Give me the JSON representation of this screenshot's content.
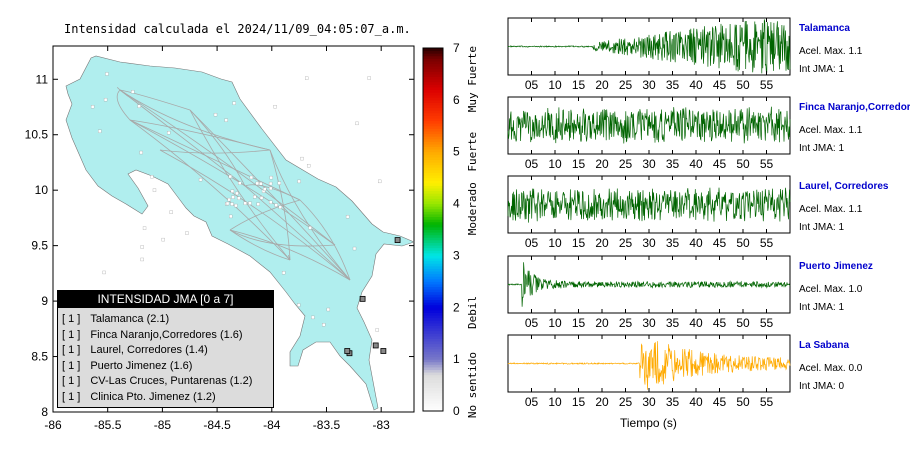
{
  "title": "Intensidad calculada el 2024/11/09_04:05:07_a.m.",
  "colorbar": {
    "ticks": [
      "0",
      "1",
      "2",
      "3",
      "4",
      "5",
      "6",
      "7"
    ],
    "words": [
      "No sentido",
      "Debil",
      "Moderado",
      "Fuerte",
      "Muy Fuerte"
    ]
  },
  "map": {
    "x_ticks": [
      "-86",
      "-85.5",
      "-85",
      "-84.5",
      "-84",
      "-83.5",
      "-83"
    ],
    "y_ticks": [
      "8",
      "8.5",
      "9",
      "9.5",
      "10",
      "10.5",
      "11"
    ],
    "land_color": "#b0eeee"
  },
  "legend": {
    "title": "INTENSIDAD JMA [0 a 7]",
    "rows": [
      {
        "bracket": "[ 1 ]",
        "label": "Talamanca (2.1)"
      },
      {
        "bracket": "[ 1 ]",
        "label": "Finca Naranjo,Corredores (1.6)"
      },
      {
        "bracket": "[ 1 ]",
        "label": "Laurel, Corredores (1.4)"
      },
      {
        "bracket": "[ 1 ]",
        "label": "Puerto Jimenez (1.6)"
      },
      {
        "bracket": "[ 1 ]",
        "label": "CV-Las Cruces, Puntarenas (1.2)"
      },
      {
        "bracket": "[ 1 ]",
        "label": "Clinica Pto. Jimenez (1.2)"
      }
    ]
  },
  "chart_data": [
    {
      "type": "heatmap",
      "x_range": [
        -86,
        -82.7
      ],
      "y_range": [
        8,
        11.3
      ],
      "colorbar_range": [
        0,
        7
      ],
      "stations": [
        {
          "name": "Talamanca",
          "lon": -82.85,
          "lat": 9.55
        },
        {
          "name": "Finca Naranjo,Corredores",
          "lon": -82.98,
          "lat": 8.55
        },
        {
          "name": "Laurel, Corredores",
          "lon": -83.05,
          "lat": 8.6
        },
        {
          "name": "Puerto Jimenez",
          "lon": -83.29,
          "lat": 8.53
        },
        {
          "name": "CV-Las Cruces, Puntarenas",
          "lon": -83.17,
          "lat": 9.02
        },
        {
          "name": "Clinica Pto. Jimenez",
          "lon": -83.31,
          "lat": 8.55
        }
      ]
    },
    {
      "type": "line",
      "xlabel": "Tiempo (s)",
      "x_ticks": [
        "05",
        "10",
        "15",
        "20",
        "25",
        "30",
        "35",
        "40",
        "45",
        "50",
        "55"
      ],
      "x_range": [
        0,
        60
      ],
      "panels": [
        {
          "name": "Talamanca",
          "accel": "Acel. Max. 1.1",
          "jma": "Int JMA: 1",
          "color": "#006400",
          "onset": 18
        },
        {
          "name": "Finca Naranjo,Corredores",
          "accel": "Acel. Max. 1.1",
          "jma": "Int JMA: 1",
          "color": "#006400",
          "onset": 0
        },
        {
          "name": "Laurel, Corredores",
          "accel": "Acel. Max. 1.1",
          "jma": "Int JMA: 1",
          "color": "#006400",
          "onset": 0
        },
        {
          "name": "Puerto Jimenez",
          "accel": "Acel. Max. 1.0",
          "jma": "Int JMA: 1",
          "color": "#006400",
          "onset": 3
        },
        {
          "name": "La Sabana",
          "accel": "Acel. Max. 0.0",
          "jma": "Int JMA: 0",
          "color": "#ffaa00",
          "onset": 28
        }
      ]
    }
  ]
}
